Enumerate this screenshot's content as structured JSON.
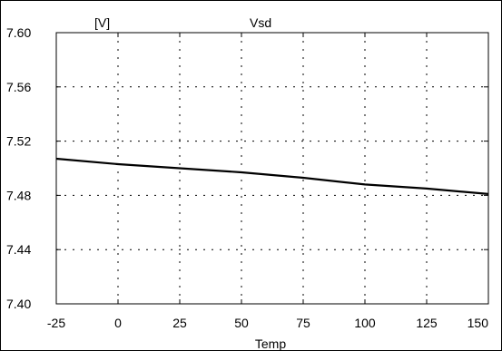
{
  "chart_data": {
    "type": "line",
    "title": "Vsd",
    "xlabel": "Temp",
    "ylabel": "[V]",
    "x_ticks": [
      "-25",
      "0",
      "25",
      "50",
      "75",
      "100",
      "125",
      "150"
    ],
    "y_ticks": [
      "7.40",
      "7.44",
      "7.48",
      "7.52",
      "7.56",
      "7.60"
    ],
    "xlim": [
      -25,
      150
    ],
    "ylim": [
      7.4,
      7.6
    ],
    "grid": true,
    "series": [
      {
        "x": [
          -25,
          0,
          25,
          50,
          75,
          100,
          125,
          150
        ],
        "y": [
          7.507,
          7.503,
          7.5,
          7.497,
          7.493,
          7.488,
          7.485,
          7.481
        ]
      }
    ]
  },
  "colors": {
    "line": "#000000",
    "grid": "#000000",
    "background": "#ffffff"
  }
}
